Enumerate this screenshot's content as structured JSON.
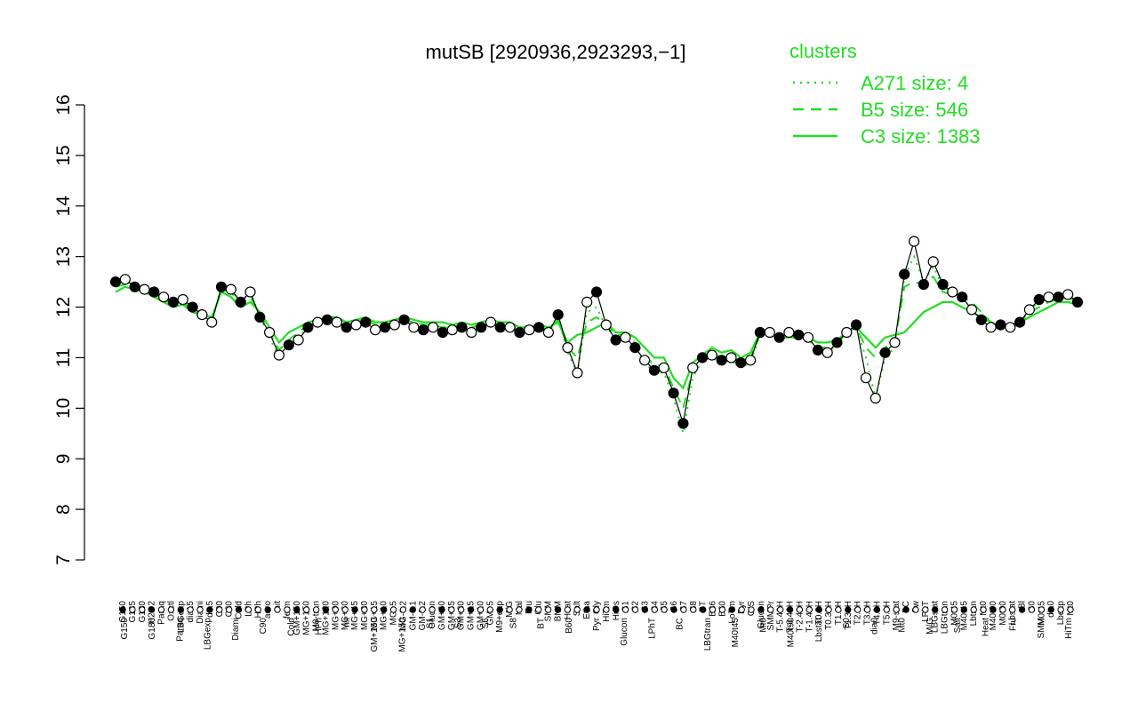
{
  "chart_data": {
    "type": "line",
    "title": "mutSB [2920936,2923293,−1]",
    "xlabel": "",
    "ylabel": "",
    "ylim": [
      7,
      16
    ],
    "yticks": [
      7,
      8,
      9,
      10,
      11,
      12,
      13,
      14,
      15,
      16
    ],
    "grid": false,
    "legend": {
      "title": "clusters",
      "placement": "top-right",
      "entries": [
        {
          "label": "A271 size: 4",
          "style": "dotted"
        },
        {
          "label": "B5 size: 546",
          "style": "dashed"
        },
        {
          "label": "C3 size: 1383",
          "style": "solid"
        }
      ]
    },
    "colors": {
      "series": "#22dd22",
      "points": "#000000",
      "axis": "#000000"
    },
    "top_labels": [
      "G150",
      "G135",
      "G180",
      "H2O2",
      "Paraq",
      "Oxctl",
      "LBGexp",
      "dia15",
      "Diami",
      "dia5",
      "C90",
      "C30",
      "Cold",
      "LPh",
      "HPh",
      "aero",
      "nit",
      "ferm",
      "GM+150",
      "MG+150",
      "M9-tran",
      "MG+120",
      "MG+90",
      "MG+60",
      "MG+45",
      "MG+30",
      "MG+15",
      "MG+10",
      "MG+5",
      "MG-0.2",
      "GM-0.1",
      "GM-0.2",
      "Glucon",
      "GM+60",
      "GM+45",
      "GM+30",
      "GM+15",
      "GM+10",
      "GM+5",
      "M9+exp",
      "M/G",
      "Mal",
      "Fru",
      "Glu",
      "SMM",
      "BMM",
      "Heat",
      "Salt",
      "Etha",
      "Gly",
      "HiTm",
      "HiOs",
      "S1",
      "S2",
      "S3",
      "S4",
      "S5",
      "S6",
      "S7",
      "S8",
      "BT",
      "B36",
      "B60",
      "LoTm",
      "Pyr",
      "G/S",
      "Glucon",
      "SMMPr",
      "T-5.40H",
      "T-3.40H",
      "T-2.40H",
      "T-1.40H",
      "T0.0H",
      "T0.30H",
      "T1.0H",
      "T1.30H",
      "T2.0H",
      "T3.0H",
      "T4.0H",
      "T5.0H",
      "M9-stat",
      "BC",
      "Sw",
      "LPhT",
      "LBGstat",
      "LBGtran",
      "M0t45",
      "M40t45",
      "Lbtran",
      "Mt0",
      "M40t90",
      "M0t90",
      "Lbstat",
      "Bl",
      "S0",
      "M0t45",
      "dia0",
      "Lbexp",
      "Mt0"
    ],
    "bottom_labels": [
      "G150",
      "G180",
      "Paraq",
      "LBGexp",
      "Diami",
      "C90",
      "Cold",
      "HPh",
      "nit",
      "GM+150",
      "MG+150",
      "S1",
      "S3",
      "S6",
      "S8",
      "BT",
      "B60",
      "Pyr",
      "Glucon",
      "LPhT",
      "BC",
      "LBGtran",
      "M40t45",
      "Mt0",
      "M40t90",
      "Lbstat",
      "S0",
      "dia0",
      "Mt0",
      "M/G",
      "Salt",
      "Heat",
      "Fru",
      "SMM",
      "HiTm"
    ],
    "series": [
      {
        "name": "C3 size: 1383",
        "style": "solid",
        "x": [
          0,
          2,
          4,
          6,
          8,
          10,
          12,
          14,
          16,
          18,
          20,
          22,
          24,
          26,
          28,
          30,
          32,
          34,
          36,
          38,
          40,
          42,
          44,
          46,
          48,
          50,
          52,
          54,
          56,
          58,
          60,
          62,
          64,
          66,
          68,
          70,
          72,
          74,
          76,
          78,
          80,
          82,
          84,
          86,
          88,
          90,
          92,
          94,
          96,
          98,
          100,
          102,
          104,
          106,
          108,
          110,
          112,
          114,
          116,
          118,
          120,
          122,
          124,
          126,
          128,
          130,
          132,
          134,
          136,
          138,
          140,
          142,
          144,
          146,
          148,
          150,
          152,
          154,
          156,
          158,
          160,
          162,
          164,
          166,
          168,
          170,
          172,
          174,
          176,
          178,
          180,
          182,
          184,
          186,
          188,
          190,
          192,
          194,
          196,
          198,
          200
        ],
        "values": [
          12.3,
          12.4,
          12.35,
          12.3,
          12.2,
          12.1,
          12.0,
          12.05,
          11.9,
          11.85,
          11.8,
          12.3,
          12.2,
          12.0,
          12.1,
          11.9,
          11.6,
          11.3,
          11.5,
          11.6,
          11.7,
          11.75,
          11.8,
          11.8,
          11.7,
          11.75,
          11.8,
          11.7,
          11.7,
          11.75,
          11.8,
          11.75,
          11.7,
          11.7,
          11.7,
          11.65,
          11.7,
          11.65,
          11.7,
          11.75,
          11.7,
          11.7,
          11.6,
          11.6,
          11.65,
          11.6,
          11.7,
          11.3,
          11.45,
          11.5,
          11.6,
          11.7,
          11.5,
          11.5,
          11.4,
          11.2,
          11.0,
          11.0,
          10.6,
          10.4,
          10.9,
          11.05,
          11.2,
          11.1,
          11.15,
          11.0,
          11.1,
          11.5,
          11.45,
          11.4,
          11.4,
          11.4,
          11.4,
          11.3,
          11.3,
          11.35,
          11.5,
          11.6,
          11.4,
          11.2,
          11.4,
          11.45,
          11.5,
          11.7,
          11.9,
          12.0,
          12.1,
          12.1,
          12.0,
          11.9,
          11.8,
          11.7,
          11.6,
          11.65,
          11.7,
          11.8,
          11.9,
          12.0,
          12.1,
          12.1,
          12.05
        ]
      },
      {
        "name": "B5 size: 546",
        "style": "dashed",
        "x": [
          0,
          2,
          4,
          6,
          8,
          10,
          12,
          14,
          16,
          18,
          20,
          22,
          24,
          26,
          28,
          30,
          32,
          34,
          36,
          38,
          40,
          42,
          44,
          46,
          48,
          50,
          52,
          54,
          56,
          58,
          60,
          62,
          64,
          66,
          68,
          70,
          72,
          74,
          76,
          78,
          80,
          82,
          84,
          86,
          88,
          90,
          92,
          94,
          96,
          98,
          100,
          102,
          104,
          106,
          108,
          110,
          112,
          114,
          116,
          118,
          120,
          122,
          124,
          126,
          128,
          130,
          132,
          134,
          136,
          138,
          140,
          142,
          144,
          146,
          148,
          150,
          152,
          154,
          156,
          158,
          160,
          162,
          164,
          166,
          168,
          170,
          172,
          174,
          176,
          178,
          180,
          182,
          184,
          186,
          188,
          190,
          192,
          194,
          196,
          198,
          200
        ],
        "values": [
          12.4,
          12.45,
          12.4,
          12.35,
          12.25,
          12.15,
          12.05,
          12.1,
          11.95,
          11.85,
          11.75,
          12.35,
          12.3,
          12.05,
          12.2,
          11.85,
          11.5,
          11.15,
          11.35,
          11.5,
          11.65,
          11.75,
          11.8,
          11.75,
          11.7,
          11.7,
          11.75,
          11.65,
          11.65,
          11.7,
          11.75,
          11.7,
          11.65,
          11.65,
          11.6,
          11.6,
          11.65,
          11.6,
          11.65,
          11.7,
          11.65,
          11.65,
          11.55,
          11.55,
          11.6,
          11.55,
          11.75,
          11.2,
          11.0,
          11.7,
          11.8,
          11.65,
          11.45,
          11.45,
          11.3,
          11.05,
          10.85,
          10.85,
          10.4,
          10.0,
          10.75,
          11.0,
          11.1,
          11.0,
          11.05,
          10.9,
          11.0,
          11.45,
          11.45,
          11.4,
          11.45,
          11.4,
          11.4,
          11.2,
          11.2,
          11.3,
          11.5,
          11.6,
          11.2,
          11.0,
          11.2,
          11.3,
          12.4,
          12.5,
          12.45,
          12.6,
          12.3,
          12.25,
          12.2,
          12.1,
          11.9,
          11.7,
          11.65,
          11.6,
          11.7,
          11.9,
          12.0,
          12.1,
          12.15,
          12.2,
          12.1
        ]
      },
      {
        "name": "A271 size: 4",
        "style": "dotted",
        "x": [
          0,
          2,
          4,
          6,
          8,
          10,
          12,
          14,
          16,
          18,
          20,
          22,
          24,
          26,
          28,
          30,
          32,
          34,
          36,
          38,
          40,
          42,
          44,
          46,
          48,
          50,
          52,
          54,
          56,
          58,
          60,
          62,
          64,
          66,
          68,
          70,
          72,
          74,
          76,
          78,
          80,
          82,
          84,
          86,
          88,
          90,
          92,
          94,
          96,
          98,
          100,
          102,
          104,
          106,
          108,
          110,
          112,
          114,
          116,
          118,
          120,
          122,
          124,
          126,
          128,
          130,
          132,
          134,
          136,
          138,
          140,
          142,
          144,
          146,
          148,
          150,
          152,
          154,
          156,
          158,
          160,
          162,
          164,
          166,
          168,
          170,
          172,
          174,
          176,
          178,
          180,
          182,
          184,
          186,
          188,
          190,
          192,
          194,
          196,
          198,
          200
        ],
        "values": [
          12.5,
          12.5,
          12.45,
          12.4,
          12.3,
          12.2,
          12.1,
          12.15,
          11.9,
          11.8,
          11.7,
          12.4,
          12.35,
          12.1,
          12.3,
          11.8,
          11.4,
          11.0,
          11.2,
          11.4,
          11.6,
          11.7,
          11.75,
          11.7,
          11.65,
          11.65,
          11.7,
          11.6,
          11.6,
          11.65,
          11.7,
          11.65,
          11.6,
          11.6,
          11.55,
          11.55,
          11.6,
          11.55,
          11.6,
          11.65,
          11.6,
          11.6,
          11.5,
          11.5,
          11.55,
          11.5,
          11.8,
          11.1,
          10.7,
          11.9,
          12.0,
          11.6,
          11.4,
          11.4,
          11.2,
          10.9,
          10.7,
          10.7,
          10.2,
          9.5,
          10.6,
          10.95,
          11.0,
          10.9,
          10.95,
          10.8,
          10.9,
          11.45,
          11.5,
          11.4,
          11.5,
          11.4,
          11.4,
          11.1,
          11.1,
          11.25,
          11.5,
          11.6,
          11.0,
          10.2,
          11.0,
          11.2,
          12.6,
          13.0,
          12.5,
          12.8,
          12.4,
          12.3,
          12.2,
          12.0,
          11.8,
          11.6,
          11.6,
          11.55,
          11.7,
          11.95,
          12.1,
          12.15,
          12.2,
          12.25,
          12.1
        ]
      }
    ],
    "points": {
      "x": [
        0,
        2,
        4,
        6,
        8,
        10,
        12,
        14,
        16,
        18,
        20,
        22,
        24,
        26,
        28,
        30,
        32,
        34,
        36,
        38,
        40,
        42,
        44,
        46,
        48,
        50,
        52,
        54,
        56,
        58,
        60,
        62,
        64,
        66,
        68,
        70,
        72,
        74,
        76,
        78,
        80,
        82,
        84,
        86,
        88,
        90,
        92,
        94,
        96,
        98,
        100,
        102,
        104,
        106,
        108,
        110,
        112,
        114,
        116,
        118,
        120,
        122,
        124,
        126,
        128,
        130,
        132,
        134,
        136,
        138,
        140,
        142,
        144,
        146,
        148,
        150,
        152,
        154,
        156,
        158,
        160,
        162,
        164,
        166,
        168,
        170,
        172,
        174,
        176,
        178,
        180,
        182,
        184,
        186,
        188,
        190,
        192,
        194,
        196,
        198,
        200
      ],
      "values": [
        12.5,
        12.55,
        12.4,
        12.35,
        12.3,
        12.2,
        12.1,
        12.15,
        12.0,
        11.85,
        11.7,
        12.4,
        12.35,
        12.1,
        12.3,
        11.8,
        11.5,
        11.05,
        11.25,
        11.35,
        11.6,
        11.7,
        11.75,
        11.7,
        11.6,
        11.65,
        11.7,
        11.55,
        11.6,
        11.65,
        11.75,
        11.6,
        11.55,
        11.6,
        11.5,
        11.55,
        11.6,
        11.5,
        11.6,
        11.7,
        11.6,
        11.6,
        11.5,
        11.55,
        11.6,
        11.5,
        11.85,
        11.2,
        10.7,
        12.1,
        12.3,
        11.65,
        11.35,
        11.4,
        11.2,
        10.95,
        10.75,
        10.8,
        10.3,
        9.7,
        10.8,
        11.0,
        11.05,
        10.95,
        11.0,
        10.9,
        10.95,
        11.5,
        11.5,
        11.4,
        11.5,
        11.45,
        11.4,
        11.15,
        11.1,
        11.3,
        11.5,
        11.65,
        10.6,
        10.2,
        11.1,
        11.3,
        12.65,
        13.3,
        12.45,
        12.9,
        12.45,
        12.3,
        12.2,
        11.95,
        11.75,
        11.6,
        11.65,
        11.6,
        11.7,
        11.95,
        12.15,
        12.2,
        12.2,
        12.25,
        12.1
      ],
      "filled": [
        true,
        false,
        true,
        false,
        true,
        false,
        true,
        false,
        true,
        false,
        false,
        true,
        false,
        true,
        false,
        true,
        false,
        false,
        true,
        false,
        true,
        false,
        true,
        false,
        true,
        false,
        true,
        false,
        true,
        false,
        true,
        false,
        true,
        false,
        true,
        false,
        true,
        false,
        true,
        false,
        true,
        false,
        true,
        false,
        true,
        false,
        true,
        false,
        false,
        false,
        true,
        false,
        true,
        false,
        true,
        false,
        true,
        false,
        true,
        true,
        false,
        true,
        false,
        true,
        false,
        true,
        false,
        true,
        false,
        true,
        false,
        true,
        false,
        true,
        false,
        true,
        false,
        true,
        false,
        false,
        true,
        false,
        true,
        false,
        true,
        false,
        true,
        false,
        true,
        false,
        true,
        false,
        true,
        false,
        true,
        false,
        true,
        false,
        true,
        false,
        true
      ]
    }
  }
}
